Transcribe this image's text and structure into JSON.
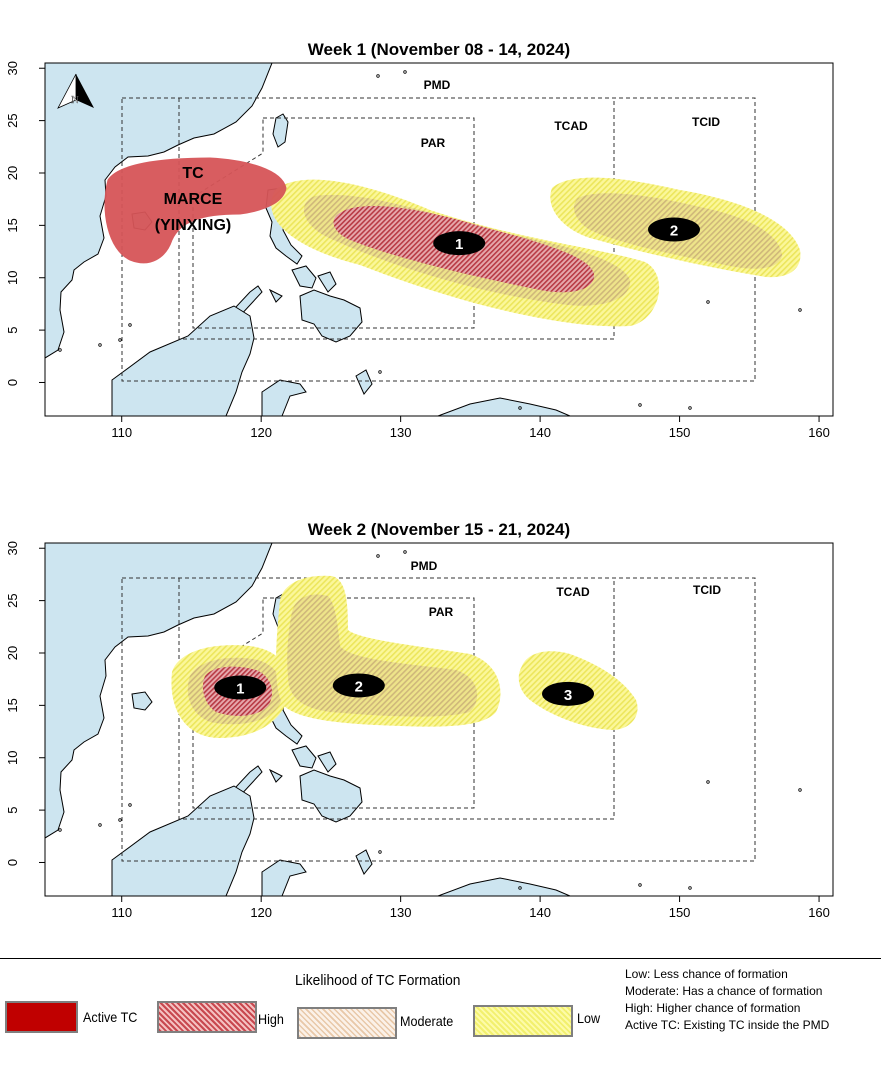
{
  "panels": [
    {
      "title": "Week 1 (November 08 - 14, 2024)",
      "active_tc_label": [
        "TC",
        "MARCE",
        "(YINXING)"
      ],
      "systems": [
        {
          "id": "1",
          "lon": 134.2,
          "lat": 13.3
        },
        {
          "id": "2",
          "lon": 149.6,
          "lat": 14.6
        }
      ]
    },
    {
      "title": "Week 2 (November 15 - 21, 2024)",
      "systems": [
        {
          "id": "1",
          "lon": 118.5,
          "lat": 16.7
        },
        {
          "id": "2",
          "lon": 127.0,
          "lat": 16.9
        },
        {
          "id": "3",
          "lon": 142.0,
          "lat": 16.1
        }
      ]
    }
  ],
  "axes": {
    "x_ticks": [
      "110",
      "120",
      "130",
      "140",
      "150",
      "160"
    ],
    "y_ticks": [
      "0",
      "5",
      "10",
      "15",
      "20",
      "25",
      "30"
    ],
    "xlim": [
      104.5,
      161
    ],
    "ylim": [
      -3.2,
      30.5
    ]
  },
  "domain_labels": {
    "pmd": "PMD",
    "par": "PAR",
    "tcad": "TCAD",
    "tcid": "TCID"
  },
  "legend": {
    "title": "Likelihood of TC Formation",
    "active": "Active TC",
    "high": "High",
    "moderate": "Moderate",
    "low": "Low"
  },
  "notes": [
    "Low: Less chance of formation",
    "Moderate: Has a chance of formation",
    "High: Higher chance of formation",
    "Active TC: Existing TC inside the PMD"
  ],
  "colors": {
    "land": "#cde5f0",
    "active": "#d65558",
    "high": "#c0464c",
    "moderate": "#e3c08c",
    "low": "#f8f27a"
  }
}
